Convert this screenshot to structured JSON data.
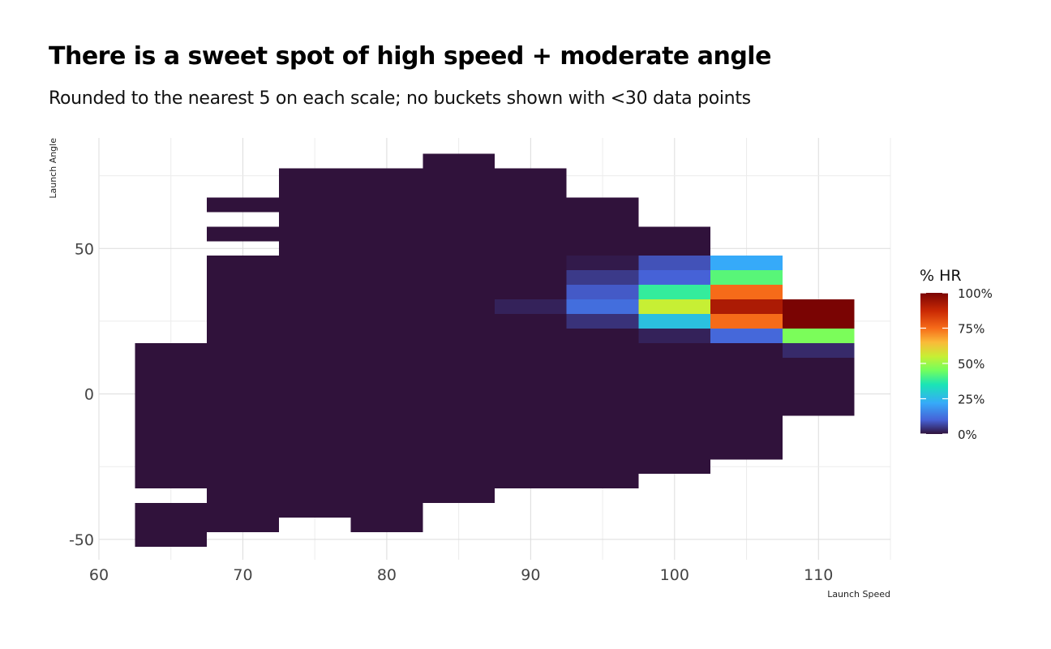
{
  "chart_data": {
    "type": "heatmap",
    "title": "There is a sweet spot of high speed + moderate angle",
    "subtitle": "Rounded to the nearest 5 on each scale; no buckets shown with <30 data points",
    "xlabel": "Launch Speed",
    "ylabel": "Launch Angle",
    "xlim": [
      60,
      115
    ],
    "ylim": [
      -57,
      88
    ],
    "x_ticks": [
      60,
      70,
      80,
      90,
      100,
      110
    ],
    "y_ticks": [
      -50,
      0,
      50
    ],
    "bin_width": 5,
    "grid": true,
    "legend": {
      "title": "% HR",
      "position": "right",
      "labels": [
        "100%",
        "75%",
        "50%",
        "25%",
        "0%"
      ]
    },
    "colorscale": [
      {
        "t": 0.0,
        "color": "#30123b"
      },
      {
        "t": 0.1,
        "color": "#4662d7"
      },
      {
        "t": 0.22,
        "color": "#36aaf9"
      },
      {
        "t": 0.35,
        "color": "#1ae4b6"
      },
      {
        "t": 0.45,
        "color": "#72fe5e"
      },
      {
        "t": 0.55,
        "color": "#c7ef34"
      },
      {
        "t": 0.65,
        "color": "#faba39"
      },
      {
        "t": 0.75,
        "color": "#f66b19"
      },
      {
        "t": 0.87,
        "color": "#cb2a04"
      },
      {
        "t": 1.0,
        "color": "#7a0403"
      }
    ],
    "columns": [
      {
        "x": 65,
        "blocks": [
          {
            "y_min": -30,
            "y_max": 15,
            "value": 0.0
          },
          {
            "y_min": -50,
            "y_max": -40,
            "value": 0.0
          }
        ]
      },
      {
        "x": 70,
        "blocks": [
          {
            "y_min": 65,
            "y_max": 65,
            "value": 0.0
          },
          {
            "y_min": 55,
            "y_max": 55,
            "value": 0.0
          },
          {
            "y_min": -45,
            "y_max": 45,
            "value": 0.0
          }
        ]
      },
      {
        "x": 75,
        "blocks": [
          {
            "y_min": 55,
            "y_max": 75,
            "value": 0.0
          },
          {
            "y_min": -40,
            "y_max": 50,
            "value": 0.0
          }
        ]
      },
      {
        "x": 80,
        "blocks": [
          {
            "y_min": 55,
            "y_max": 75,
            "value": 0.0
          },
          {
            "y_min": -45,
            "y_max": 50,
            "value": 0.0
          }
        ]
      },
      {
        "x": 85,
        "blocks": [
          {
            "y_min": -35,
            "y_max": 80,
            "value": 0.0
          }
        ]
      },
      {
        "x": 90,
        "blocks": [
          {
            "y_min": 35,
            "y_max": 75,
            "value": 0.0
          },
          {
            "y_min": 30,
            "y_max": 30,
            "value": 0.02
          },
          {
            "y_min": -30,
            "y_max": 25,
            "value": 0.0
          }
        ]
      },
      {
        "x": 95,
        "blocks": [
          {
            "y_min": 50,
            "y_max": 65,
            "value": 0.0
          },
          {
            "y_min": 45,
            "y_max": 45,
            "value": 0.01
          },
          {
            "y_min": 40,
            "y_max": 40,
            "value": 0.05
          },
          {
            "y_min": 35,
            "y_max": 35,
            "value": 0.09
          },
          {
            "y_min": 30,
            "y_max": 30,
            "value": 0.12
          },
          {
            "y_min": 25,
            "y_max": 25,
            "value": 0.04
          },
          {
            "y_min": -30,
            "y_max": 20,
            "value": 0.0
          }
        ]
      },
      {
        "x": 100,
        "blocks": [
          {
            "y_min": 50,
            "y_max": 55,
            "value": 0.0
          },
          {
            "y_min": 45,
            "y_max": 45,
            "value": 0.08
          },
          {
            "y_min": 40,
            "y_max": 40,
            "value": 0.1
          },
          {
            "y_min": 35,
            "y_max": 35,
            "value": 0.38
          },
          {
            "y_min": 30,
            "y_max": 30,
            "value": 0.55
          },
          {
            "y_min": 25,
            "y_max": 25,
            "value": 0.27
          },
          {
            "y_min": 20,
            "y_max": 20,
            "value": 0.02
          },
          {
            "y_min": -25,
            "y_max": 15,
            "value": 0.0
          }
        ]
      },
      {
        "x": 105,
        "blocks": [
          {
            "y_min": 45,
            "y_max": 45,
            "value": 0.22
          },
          {
            "y_min": 40,
            "y_max": 40,
            "value": 0.42
          },
          {
            "y_min": 35,
            "y_max": 35,
            "value": 0.75
          },
          {
            "y_min": 30,
            "y_max": 30,
            "value": 0.92
          },
          {
            "y_min": 25,
            "y_max": 25,
            "value": 0.75
          },
          {
            "y_min": 20,
            "y_max": 20,
            "value": 0.11
          },
          {
            "y_min": -20,
            "y_max": 15,
            "value": 0.0
          }
        ]
      },
      {
        "x": 110,
        "blocks": [
          {
            "y_min": 25,
            "y_max": 30,
            "value": 1.0
          },
          {
            "y_min": 20,
            "y_max": 20,
            "value": 0.46
          },
          {
            "y_min": 15,
            "y_max": 15,
            "value": 0.03
          },
          {
            "y_min": -5,
            "y_max": 10,
            "value": 0.0
          }
        ]
      }
    ]
  }
}
